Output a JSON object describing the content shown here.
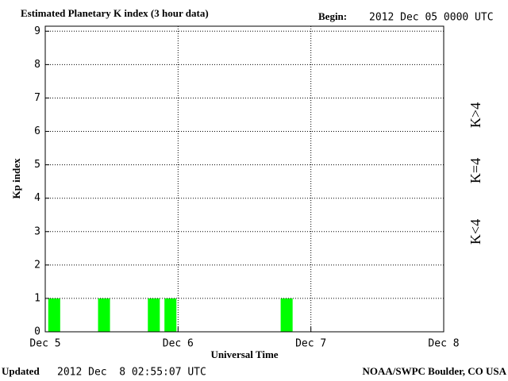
{
  "chart_data": {
    "type": "bar",
    "title": "Estimated Planetary K index (3 hour data)",
    "begin_label": "Begin:",
    "begin_value": "2012 Dec 05 0000 UTC",
    "ylabel": "Kp index",
    "xlabel": "Universal Time",
    "updated_label": "Updated",
    "updated_value": "2012 Dec  8 02:55:07 UTC",
    "source": "NOAA/SWPC Boulder, CO USA",
    "x": [
      0,
      0.125,
      0.25,
      0.375,
      0.5,
      0.625,
      0.75,
      0.875,
      1,
      1.125,
      1.25,
      1.375,
      1.5,
      1.625,
      1.75,
      1.875,
      2,
      2.125,
      2.25,
      2.375,
      2.5,
      2.625,
      2.75,
      2.875
    ],
    "bin_width": 0.125,
    "values": [
      1,
      0,
      0,
      1,
      0,
      0,
      1,
      1,
      0,
      0,
      0,
      0,
      0,
      0,
      1,
      0,
      0,
      0,
      0,
      0,
      0,
      0,
      0,
      0
    ],
    "color": "#00ff00",
    "xlim": [
      0,
      3
    ],
    "xticks": [
      {
        "value": 0,
        "label": "Dec 5"
      },
      {
        "value": 1,
        "label": "Dec 6"
      },
      {
        "value": 2,
        "label": "Dec 7"
      },
      {
        "value": 3,
        "label": "Dec 8"
      }
    ],
    "ylim": [
      0,
      9.15
    ],
    "yticks": [
      0,
      1,
      2,
      3,
      4,
      5,
      6,
      7,
      8,
      9
    ],
    "grid": true,
    "legend": [
      {
        "label": "K<4",
        "color": "#22ee22"
      },
      {
        "label": "K=4",
        "color": "#ffcc00"
      },
      {
        "label": "K>4",
        "color": "#ff2200"
      }
    ]
  }
}
